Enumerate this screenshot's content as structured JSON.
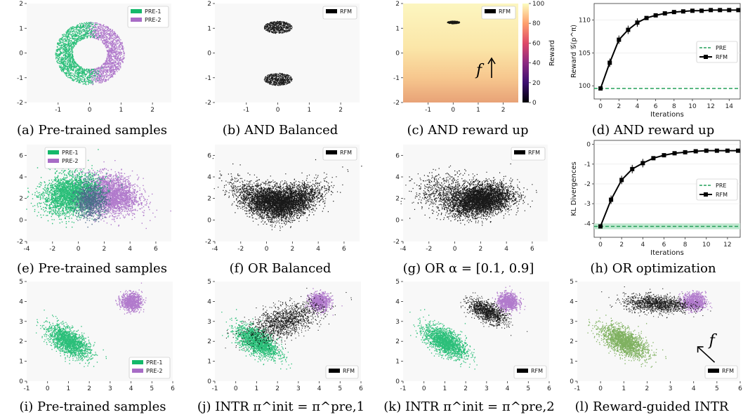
{
  "colors": {
    "pre1": "#14b86a",
    "pre2": "#a86cc6",
    "overlap": "#4a6488",
    "rfm": "#000000",
    "pre_line": "#25a05a",
    "panel_bg": "#f8f8f8",
    "reward_green": "#71a84f"
  },
  "chart_data": [
    {
      "id": "a",
      "type": "scatter",
      "caption": "(a) Pre-trained samples",
      "xlim": [
        -2,
        2.6
      ],
      "ylim": [
        -2,
        2
      ],
      "xticks": [
        "-1",
        "0",
        "1",
        "2"
      ],
      "yticks": [
        "-2",
        "-1",
        "0",
        "1",
        "2"
      ],
      "legend": {
        "position": "top-right",
        "entries": [
          "PRE-1",
          "PRE-2"
        ]
      },
      "series": [
        {
          "name": "PRE-1",
          "distribution": "ring",
          "center": [
            0,
            0
          ],
          "radius_x": [
            0.6,
            1.1
          ],
          "radius_y": [
            0.6,
            1.3
          ],
          "side": "x<0.3"
        },
        {
          "name": "PRE-2",
          "distribution": "ring",
          "center": [
            0,
            0
          ],
          "radius_x": [
            0.6,
            1.1
          ],
          "radius_y": [
            0.6,
            1.3
          ],
          "side": "x>-0.3"
        }
      ]
    },
    {
      "id": "b",
      "type": "scatter",
      "caption": "(b) AND Balanced",
      "xlim": [
        -2,
        2.6
      ],
      "ylim": [
        -2,
        2
      ],
      "xticks": [
        "-1",
        "0",
        "1",
        "2"
      ],
      "yticks": [
        "-2",
        "-1",
        "0",
        "1",
        "2"
      ],
      "legend": {
        "position": "top-right",
        "entries": [
          "RFM"
        ]
      },
      "series": [
        {
          "name": "RFM",
          "clusters": [
            {
              "center": [
                0,
                1.05
              ],
              "spread": [
                0.45,
                0.25
              ]
            },
            {
              "center": [
                0,
                -1.05
              ],
              "spread": [
                0.45,
                0.25
              ]
            }
          ]
        }
      ]
    },
    {
      "id": "c",
      "type": "scatter",
      "caption": "(c) AND reward up",
      "xlim": [
        -2,
        2.6
      ],
      "ylim": [
        -2,
        2
      ],
      "xticks": [
        "-1",
        "0",
        "1",
        "2"
      ],
      "yticks": [
        "-2",
        "-1",
        "0",
        "1",
        "2"
      ],
      "legend": {
        "position": "top-right",
        "entries": [
          "RFM"
        ]
      },
      "colorbar": {
        "label": "Reward",
        "range": [
          0,
          100
        ],
        "ticks": [
          "0",
          "20",
          "40",
          "60",
          "80",
          "100"
        ]
      },
      "annotation": "f",
      "series": [
        {
          "name": "RFM",
          "clusters": [
            {
              "center": [
                0,
                1.25
              ],
              "spread": [
                0.25,
                0.06
              ]
            }
          ]
        }
      ]
    },
    {
      "id": "d",
      "type": "line",
      "caption": "(d) AND reward up",
      "xlabel": "Iterations",
      "ylabel": "Reward 𝒢(p^π)",
      "xlim": [
        -0.7,
        15.2
      ],
      "ylim": [
        98,
        112.5
      ],
      "xticks": [
        "0",
        "2",
        "4",
        "6",
        "8",
        "10",
        "12",
        "14"
      ],
      "yticks": [
        "100",
        "105",
        "110"
      ],
      "legend": {
        "position": "center-right",
        "entries": [
          "PRE",
          "RFM"
        ]
      },
      "series": [
        {
          "name": "PRE",
          "y": 99.6
        },
        {
          "name": "RFM",
          "x": [
            0,
            1,
            2,
            3,
            4,
            5,
            6,
            7,
            8,
            9,
            10,
            11,
            12,
            13,
            14,
            15
          ],
          "values": [
            99.6,
            103.5,
            107,
            108.5,
            109.6,
            110.3,
            110.7,
            111,
            111.2,
            111.3,
            111.4,
            111.4,
            111.5,
            111.5,
            111.5,
            111.5
          ]
        }
      ]
    },
    {
      "id": "e",
      "type": "scatter",
      "caption": "(e) Pre-trained samples",
      "xlim": [
        -4,
        7.2
      ],
      "ylim": [
        -2,
        7
      ],
      "xticks": [
        "-4",
        "-2",
        "0",
        "2",
        "4",
        "6"
      ],
      "yticks": [
        "-2",
        "0",
        "2",
        "4",
        "6"
      ],
      "legend": {
        "position": "top-left",
        "entries": [
          "PRE-1",
          "PRE-2"
        ]
      },
      "series": [
        {
          "name": "PRE-1",
          "center": [
            -0.5,
            2.5
          ]
        },
        {
          "name": "PRE-2",
          "center": [
            2.5,
            2.5
          ]
        }
      ]
    },
    {
      "id": "f",
      "type": "scatter",
      "caption": "(f) OR Balanced",
      "xlim": [
        -4,
        7.2
      ],
      "ylim": [
        -2,
        7
      ],
      "xticks": [
        "-4",
        "-2",
        "0",
        "2",
        "4",
        "6"
      ],
      "yticks": [
        "-2",
        "0",
        "2",
        "4",
        "6"
      ],
      "legend": {
        "position": "top-right",
        "entries": [
          "RFM"
        ]
      },
      "series": [
        {
          "name": "RFM",
          "shape": "banana",
          "center": [
            1,
            2
          ]
        }
      ]
    },
    {
      "id": "g",
      "type": "scatter",
      "caption": "(g) OR α = [0.1, 0.9]",
      "xlim": [
        -4,
        7.2
      ],
      "ylim": [
        -2,
        7
      ],
      "xticks": [
        "-4",
        "-2",
        "0",
        "2",
        "4",
        "6"
      ],
      "yticks": [
        "-2",
        "0",
        "2",
        "4",
        "6"
      ],
      "legend": {
        "position": "top-right",
        "entries": [
          "RFM"
        ]
      },
      "series": [
        {
          "name": "RFM",
          "shape": "banana-right",
          "center": [
            2,
            2
          ]
        }
      ]
    },
    {
      "id": "h",
      "type": "line",
      "caption": "(h) OR optimization",
      "xlabel": "Iterations",
      "ylabel": "KL Divergences",
      "xlim": [
        -0.6,
        13.2
      ],
      "ylim": [
        -4.7,
        0.2
      ],
      "xticks": [
        "0",
        "2",
        "4",
        "6",
        "8",
        "10",
        "12"
      ],
      "yticks": [
        "-4",
        "-3",
        "-2",
        "-1",
        "0"
      ],
      "legend": {
        "position": "center-right",
        "entries": [
          "PRE",
          "RFM"
        ]
      },
      "series": [
        {
          "name": "PRE",
          "y": -4.15
        },
        {
          "name": "RFM",
          "x": [
            0,
            1,
            2,
            3,
            4,
            5,
            6,
            7,
            8,
            9,
            10,
            11,
            12,
            13
          ],
          "values": [
            -4.15,
            -2.8,
            -1.8,
            -1.25,
            -0.95,
            -0.7,
            -0.55,
            -0.45,
            -0.4,
            -0.35,
            -0.32,
            -0.32,
            -0.32,
            -0.32
          ]
        }
      ]
    },
    {
      "id": "i",
      "type": "scatter",
      "caption": "(i) Pre-trained samples",
      "xlim": [
        -1,
        6
      ],
      "ylim": [
        0,
        5
      ],
      "xticks": [
        "-1",
        "0",
        "1",
        "2",
        "3",
        "4",
        "5",
        "6"
      ],
      "yticks": [
        "0",
        "1",
        "2",
        "3",
        "4",
        "5"
      ],
      "legend": {
        "position": "bottom-right",
        "entries": [
          "PRE-1",
          "PRE-2"
        ]
      },
      "series": [
        {
          "name": "PRE-1",
          "center": [
            1,
            2
          ]
        },
        {
          "name": "PRE-2",
          "center": [
            4,
            4
          ]
        }
      ]
    },
    {
      "id": "j",
      "type": "scatter",
      "caption": "(j) INTR π^init = π^pre,1",
      "xlim": [
        -1,
        6
      ],
      "ylim": [
        0,
        5
      ],
      "xticks": [
        "-1",
        "0",
        "1",
        "2",
        "3",
        "4",
        "5",
        "6"
      ],
      "yticks": [
        "0",
        "1",
        "2",
        "3",
        "4",
        "5"
      ],
      "legend": {
        "position": "bottom-right",
        "entries": [
          "RFM"
        ]
      },
      "series": [
        {
          "name": "RFM",
          "center": [
            2,
            3
          ]
        }
      ]
    },
    {
      "id": "k",
      "type": "scatter",
      "caption": "(k) INTR π^init = π^pre,2",
      "xlim": [
        -1,
        6
      ],
      "ylim": [
        0,
        5
      ],
      "xticks": [
        "-1",
        "0",
        "1",
        "2",
        "3",
        "4",
        "5",
        "6"
      ],
      "yticks": [
        "0",
        "1",
        "2",
        "3",
        "4",
        "5"
      ],
      "legend": {
        "position": "bottom-right",
        "entries": [
          "RFM"
        ]
      },
      "series": [
        {
          "name": "RFM",
          "center": [
            3,
            3.5
          ]
        }
      ]
    },
    {
      "id": "l",
      "type": "scatter",
      "caption": "(l) Reward-guided INTR",
      "xlim": [
        -1,
        6
      ],
      "ylim": [
        0,
        5
      ],
      "xticks": [
        "-1",
        "0",
        "1",
        "2",
        "3",
        "4",
        "5",
        "6"
      ],
      "yticks": [
        "0",
        "1",
        "2",
        "3",
        "4",
        "5"
      ],
      "legend": {
        "position": "bottom-right",
        "entries": [
          "RFM"
        ]
      },
      "annotation": "f",
      "series": [
        {
          "name": "RFM",
          "center": [
            2.5,
            3.8
          ]
        }
      ]
    }
  ]
}
